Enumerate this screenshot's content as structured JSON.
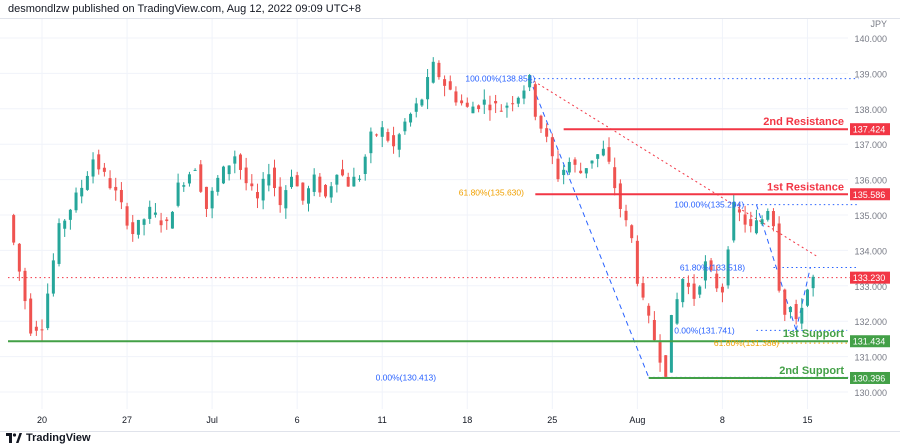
{
  "header": {
    "text": "desmondlzw published on TradingView.com, Aug 12, 2022 09:09 UTC+8"
  },
  "footer": {
    "brand": "TradingView"
  },
  "colors": {
    "up": "#26a69a",
    "down": "#ef5350",
    "resistance": "#f23645",
    "support": "#43a047",
    "fib_blue": "#2962ff",
    "fib_orange": "#f0a000",
    "grid": "#f0f3fa"
  },
  "chart_data": {
    "type": "candlestick",
    "currency": "JPY",
    "ylim": [
      130.0,
      140.0
    ],
    "yticks": [
      "130.000",
      "131.000",
      "132.000",
      "133.000",
      "134.000",
      "135.000",
      "136.000",
      "137.000",
      "138.000",
      "139.000",
      "140.000"
    ],
    "xticks": [
      {
        "label": "20",
        "bar": 6
      },
      {
        "label": "27",
        "bar": 21
      },
      {
        "label": "Jul",
        "bar": 36
      },
      {
        "label": "6",
        "bar": 51
      },
      {
        "label": "11",
        "bar": 66
      },
      {
        "label": "18",
        "bar": 81
      },
      {
        "label": "25",
        "bar": 96
      },
      {
        "label": "Aug",
        "bar": 111
      },
      {
        "label": "8",
        "bar": 126
      },
      {
        "label": "15",
        "bar": 141
      }
    ],
    "last_price": 133.23,
    "levels": [
      {
        "label": "2nd Resistance",
        "price": "137.424",
        "value": 137.424,
        "kind": "resistance",
        "start_bar": 98
      },
      {
        "label": "1st Resistance",
        "price": "135.586",
        "value": 135.586,
        "kind": "resistance",
        "start_bar": 93
      },
      {
        "label": "1st Support",
        "price": "131.434",
        "value": 131.434,
        "kind": "support",
        "start_bar": 0
      },
      {
        "label": "2nd Support",
        "price": "130.396",
        "value": 130.396,
        "kind": "support",
        "start_bar": 113
      }
    ],
    "fib_labels": [
      {
        "text": "100.00%(138.854)",
        "value": 138.854,
        "color": "blue"
      },
      {
        "text": "61.80%(135.630)",
        "value": 135.63,
        "color": "orange"
      },
      {
        "text": "0.00%(130.413)",
        "value": 130.413,
        "color": "blue"
      },
      {
        "text": "100.00%(135.294)",
        "value": 135.294,
        "color": "blue"
      },
      {
        "text": "61.80%(133.518)",
        "value": 133.518,
        "color": "blue"
      },
      {
        "text": "0.00%(131.741)",
        "value": 131.741,
        "color": "blue"
      },
      {
        "text": "61.80%(131.380)",
        "value": 131.38,
        "color": "orange"
      }
    ],
    "anchors": [
      [
        0,
        135.0
      ],
      [
        4,
        131.8
      ],
      [
        6,
        131.9
      ],
      [
        9,
        134.6
      ],
      [
        13,
        135.8
      ],
      [
        15,
        136.6
      ],
      [
        19,
        135.6
      ],
      [
        22,
        134.5
      ],
      [
        25,
        135.1
      ],
      [
        28,
        134.7
      ],
      [
        30,
        135.8
      ],
      [
        33,
        136.4
      ],
      [
        35,
        135.2
      ],
      [
        37,
        136.0
      ],
      [
        40,
        136.7
      ],
      [
        42,
        135.9
      ],
      [
        44,
        135.4
      ],
      [
        46,
        136.3
      ],
      [
        48,
        135.3
      ],
      [
        50,
        136.2
      ],
      [
        52,
        135.4
      ],
      [
        54,
        136.0
      ],
      [
        56,
        135.5
      ],
      [
        58,
        136.3
      ],
      [
        60,
        135.9
      ],
      [
        62,
        136.1
      ],
      [
        64,
        137.2
      ],
      [
        66,
        137.4
      ],
      [
        68,
        136.9
      ],
      [
        70,
        137.6
      ],
      [
        73,
        138.3
      ],
      [
        75,
        139.2
      ],
      [
        77,
        138.7
      ],
      [
        79,
        138.3
      ],
      [
        81,
        138.0
      ],
      [
        84,
        138.2
      ],
      [
        87,
        138.0
      ],
      [
        90,
        138.4
      ],
      [
        92,
        138.8
      ],
      [
        93,
        137.9
      ],
      [
        95,
        137.1
      ],
      [
        97,
        136.1
      ],
      [
        99,
        136.5
      ],
      [
        101,
        136.2
      ],
      [
        103,
        136.6
      ],
      [
        105,
        136.8
      ],
      [
        106,
        136.4
      ],
      [
        108,
        135.2
      ],
      [
        110,
        134.3
      ],
      [
        111,
        133.2
      ],
      [
        112,
        132.5
      ],
      [
        113,
        132.0
      ],
      [
        115,
        131.0
      ],
      [
        116,
        130.6
      ],
      [
        117,
        132.0
      ],
      [
        119,
        133.2
      ],
      [
        121,
        132.7
      ],
      [
        123,
        133.6
      ],
      [
        125,
        133.0
      ],
      [
        126,
        132.9
      ],
      [
        127,
        134.2
      ],
      [
        128,
        135.2
      ],
      [
        129,
        135.0
      ],
      [
        131,
        134.6
      ],
      [
        133,
        134.9
      ],
      [
        134,
        135.2
      ],
      [
        135,
        134.8
      ],
      [
        136,
        133.0
      ],
      [
        137,
        132.3
      ],
      [
        138,
        132.4
      ],
      [
        139,
        131.9
      ],
      [
        140,
        132.5
      ],
      [
        141,
        132.9
      ],
      [
        142,
        133.2
      ]
    ]
  }
}
